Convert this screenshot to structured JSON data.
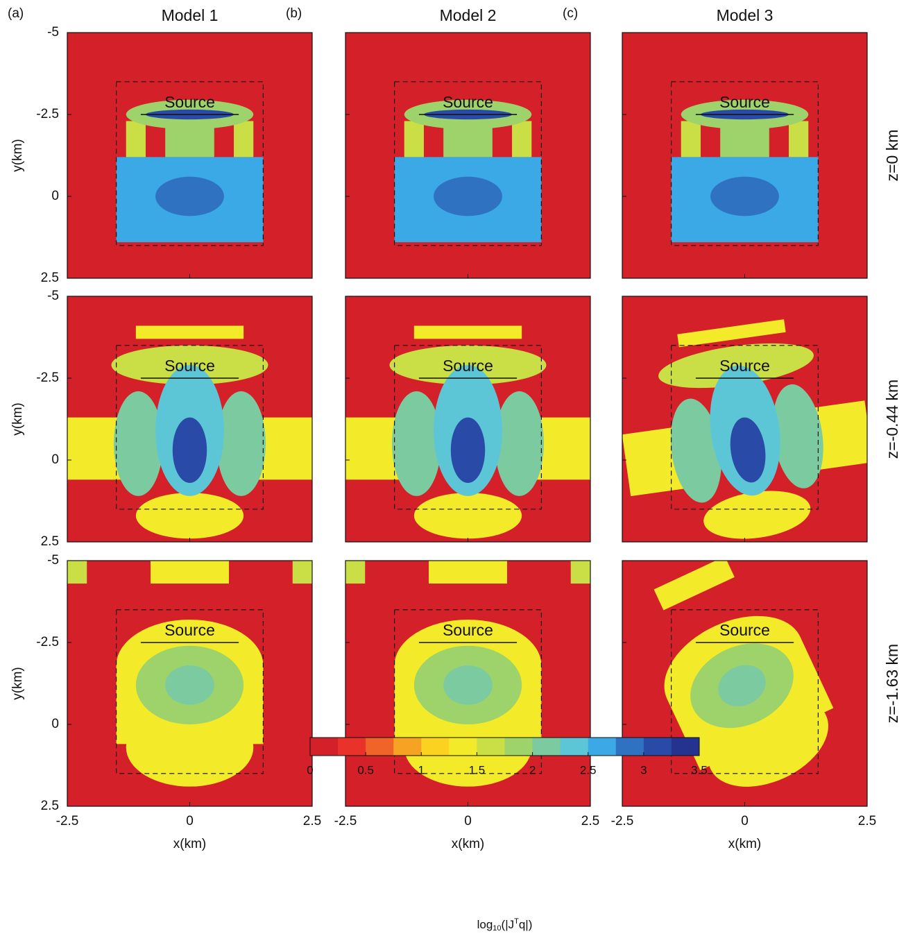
{
  "chart_data": {
    "type": "heatmap",
    "panel_labels": [
      "(a)",
      "(b)",
      "(c)"
    ],
    "columns": [
      "Model 1",
      "Model 2",
      "Model 3"
    ],
    "rows": [
      "z=0 km",
      "z=-0.44 km",
      "z=-1.63 km"
    ],
    "xlabel": "x(km)",
    "ylabel": "y(km)",
    "xlim": [
      -2.5,
      2.5
    ],
    "ylim": [
      -5,
      2.5
    ],
    "y_inverted": true,
    "xticks": [
      -2.5,
      0,
      2.5
    ],
    "yticks": [
      -5,
      -2.5,
      0,
      2.5
    ],
    "annotation": "Source",
    "survey_box": {
      "x": [
        -1.5,
        1.5
      ],
      "y": [
        -3.5,
        1.5
      ]
    },
    "source_line": {
      "x": [
        -1,
        1
      ],
      "y": -2.5
    },
    "colormap": [
      "#d42028",
      "#e8322a",
      "#f0642a",
      "#f6a323",
      "#fbd21f",
      "#f3ea2a",
      "#c9df45",
      "#9ed26a",
      "#7ccaa0",
      "#5cc6d6",
      "#3aa9e6",
      "#2f72c2",
      "#2a4aa8",
      "#23338f"
    ],
    "colorbar": {
      "lim": [
        0,
        3.5
      ],
      "ticks": [
        0,
        0.5,
        1,
        1.5,
        2,
        2.5,
        3,
        3.5
      ],
      "label": [
        "log",
        "10",
        "(|J",
        "T",
        "q|)"
      ]
    }
  }
}
